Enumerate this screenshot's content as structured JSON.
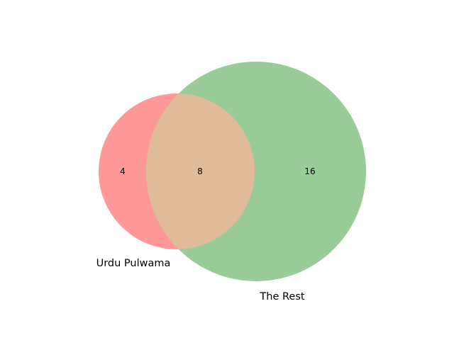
{
  "diagram": {
    "type": "venn2",
    "sets": [
      {
        "label": "Urdu Pulwama",
        "color": "#ff9999"
      },
      {
        "label": "The Rest",
        "color": "#99cc99"
      }
    ],
    "regions": {
      "only_a": "4",
      "a_and_b": "8",
      "only_b": "16"
    },
    "colors": {
      "intersection": "#e0bb99"
    }
  }
}
